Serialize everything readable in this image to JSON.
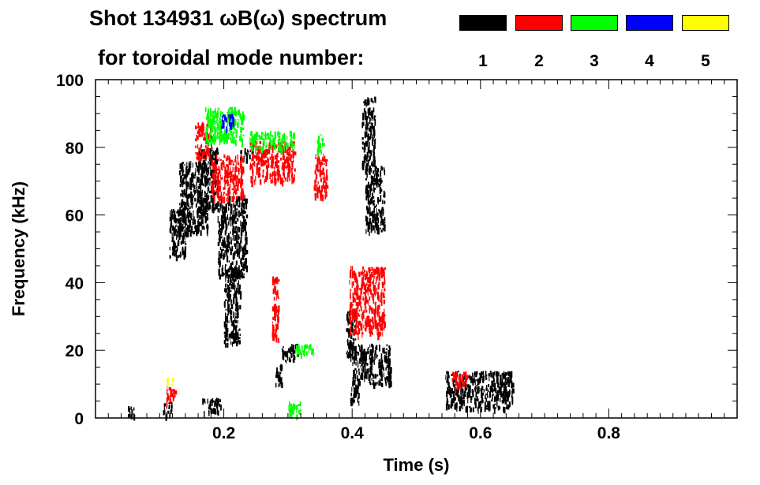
{
  "chart_data": {
    "type": "heatmap",
    "title": "Shot 134931 ωB(ω) spectrum",
    "subtitle": "for toroidal mode number:",
    "xlabel": "Time (s)",
    "ylabel": "Frequency (kHz)",
    "xlim": [
      0.0,
      1.0
    ],
    "ylim": [
      0,
      100
    ],
    "x_ticks": [
      0.2,
      0.4,
      0.6,
      0.8
    ],
    "x_tick_labels": [
      "0.2",
      "0.4",
      "0.6",
      "0.8"
    ],
    "y_ticks": [
      0,
      20,
      40,
      60,
      80,
      100
    ],
    "y_tick_labels": [
      "0",
      "20",
      "40",
      "60",
      "80",
      "100"
    ],
    "legend": [
      {
        "label": "1",
        "color": "#000000"
      },
      {
        "label": "2",
        "color": "#ff0000"
      },
      {
        "label": "3",
        "color": "#00ff00"
      },
      {
        "label": "4",
        "color": "#0000ff"
      },
      {
        "label": "5",
        "color": "#ffff00"
      }
    ],
    "legend_position": "top-right",
    "grid": false,
    "series": [
      {
        "mode": "1",
        "color": "#000000",
        "regions": [
          {
            "t": [
              0.115,
              0.14
            ],
            "f": [
              48,
              62
            ]
          },
          {
            "t": [
              0.13,
              0.175
            ],
            "f": [
              55,
              76
            ]
          },
          {
            "t": [
              0.16,
              0.19
            ],
            "f": [
              62,
              80
            ]
          },
          {
            "t": [
              0.19,
              0.235
            ],
            "f": [
              42,
              66
            ]
          },
          {
            "t": [
              0.2,
              0.225
            ],
            "f": [
              22,
              45
            ]
          },
          {
            "t": [
              0.225,
              0.245
            ],
            "f": [
              77,
              80
            ]
          },
          {
            "t": [
              0.28,
              0.29
            ],
            "f": [
              10,
              16
            ]
          },
          {
            "t": [
              0.29,
              0.315
            ],
            "f": [
              17,
              22
            ]
          },
          {
            "t": [
              0.39,
              0.405
            ],
            "f": [
              18,
              32
            ]
          },
          {
            "t": [
              0.4,
              0.46
            ],
            "f": [
              10,
              22
            ]
          },
          {
            "t": [
              0.395,
              0.41
            ],
            "f": [
              5,
              10
            ]
          },
          {
            "t": [
              0.42,
              0.45
            ],
            "f": [
              55,
              75
            ]
          },
          {
            "t": [
              0.415,
              0.435
            ],
            "f": [
              75,
              95
            ]
          },
          {
            "t": [
              0.545,
              0.65
            ],
            "f": [
              3,
              14
            ]
          },
          {
            "t": [
              0.05,
              0.06
            ],
            "f": [
              1,
              4
            ]
          },
          {
            "t": [
              0.105,
              0.12
            ],
            "f": [
              1,
              5
            ]
          },
          {
            "t": [
              0.165,
              0.195
            ],
            "f": [
              2,
              6
            ]
          }
        ]
      },
      {
        "mode": "2",
        "color": "#ff0000",
        "regions": [
          {
            "t": [
              0.155,
              0.18
            ],
            "f": [
              77,
              88
            ]
          },
          {
            "t": [
              0.18,
              0.23
            ],
            "f": [
              65,
              78
            ]
          },
          {
            "t": [
              0.24,
              0.31
            ],
            "f": [
              70,
              82
            ]
          },
          {
            "t": [
              0.34,
              0.36
            ],
            "f": [
              66,
              78
            ]
          },
          {
            "t": [
              0.275,
              0.285
            ],
            "f": [
              22,
              42
            ]
          },
          {
            "t": [
              0.395,
              0.45
            ],
            "f": [
              25,
              45
            ]
          },
          {
            "t": [
              0.555,
              0.58
            ],
            "f": [
              9,
              14
            ]
          },
          {
            "t": [
              0.11,
              0.125
            ],
            "f": [
              5,
              10
            ]
          }
        ]
      },
      {
        "mode": "3",
        "color": "#00ff00",
        "regions": [
          {
            "t": [
              0.17,
              0.23
            ],
            "f": [
              82,
              92
            ]
          },
          {
            "t": [
              0.24,
              0.31
            ],
            "f": [
              80,
              85
            ]
          },
          {
            "t": [
              0.345,
              0.355
            ],
            "f": [
              78,
              84
            ]
          },
          {
            "t": [
              0.31,
              0.34
            ],
            "f": [
              19,
              22
            ]
          },
          {
            "t": [
              0.3,
              0.32
            ],
            "f": [
              1,
              5
            ]
          }
        ]
      },
      {
        "mode": "4",
        "color": "#0000ff",
        "regions": [
          {
            "t": [
              0.195,
              0.215
            ],
            "f": [
              86,
              90
            ]
          }
        ]
      },
      {
        "mode": "5",
        "color": "#ffff00",
        "regions": [
          {
            "t": [
              0.11,
              0.12
            ],
            "f": [
              10,
              12
            ]
          }
        ]
      }
    ]
  }
}
